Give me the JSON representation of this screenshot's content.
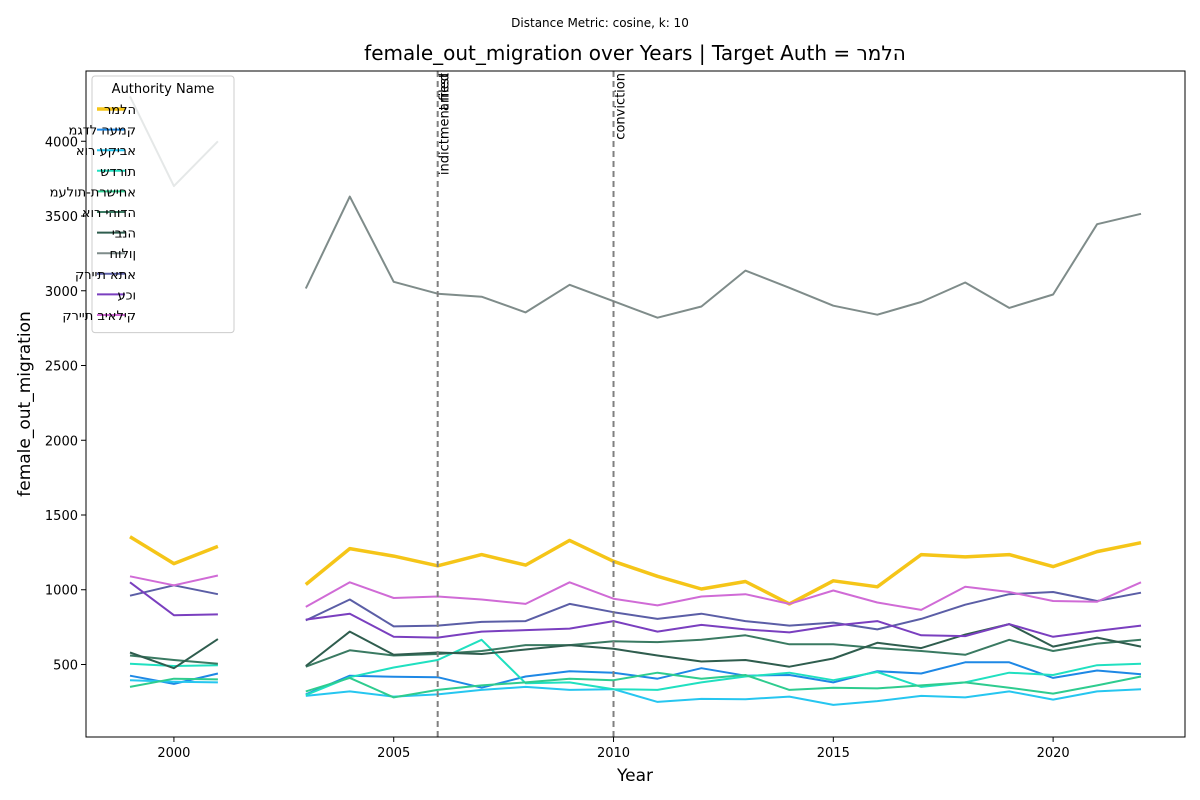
{
  "chart_data": {
    "type": "line",
    "suptitle": "Distance Metric: cosine, k: 10",
    "title": "female_out_migration over Years | Target Auth = הלמר",
    "xlabel": "Year",
    "ylabel": "female_out_migration",
    "xlim": [
      1998,
      2023
    ],
    "ylim": [
      15,
      4470
    ],
    "xticks": [
      2000,
      2005,
      2010,
      2015,
      2020
    ],
    "yticks": [
      500,
      1000,
      1500,
      2000,
      2500,
      3000,
      3500,
      4000
    ],
    "legend_title": "Authority Name",
    "legend_position": "upper-left",
    "grid": false,
    "years": [
      1999,
      2000,
      2001,
      2002,
      2003,
      2004,
      2005,
      2006,
      2007,
      2008,
      2009,
      2010,
      2011,
      2012,
      2013,
      2014,
      2015,
      2016,
      2017,
      2018,
      2019,
      2020,
      2021,
      2022
    ],
    "annotations": [
      {
        "x": 2006,
        "labels": [
          "indictment filed",
          "arrest"
        ]
      },
      {
        "x": 2010,
        "labels": [
          "conviction"
        ]
      }
    ],
    "series": [
      {
        "name": "הלמר",
        "color": "#f5c518",
        "width": 3.5,
        "values": [
          1355,
          1175,
          1290,
          null,
          1035,
          1275,
          1225,
          1160,
          1235,
          1165,
          1330,
          1190,
          1090,
          1005,
          1055,
          905,
          1060,
          1020,
          1235,
          1220,
          1235,
          1155,
          1255,
          1315
        ]
      },
      {
        "name": "קמעה לדגמ",
        "color": "#1e88e5",
        "width": 2,
        "values": [
          425,
          370,
          440,
          null,
          300,
          425,
          418,
          415,
          345,
          420,
          455,
          445,
          405,
          475,
          425,
          430,
          380,
          455,
          440,
          515,
          515,
          410,
          460,
          435
        ]
      },
      {
        "name": "אביקע רוא",
        "color": "#26c6f0",
        "width": 2,
        "values": [
          395,
          385,
          380,
          null,
          290,
          320,
          285,
          300,
          330,
          350,
          330,
          335,
          250,
          270,
          268,
          285,
          230,
          255,
          290,
          280,
          320,
          265,
          320,
          335
        ]
      },
      {
        "name": "תורדש",
        "color": "#20e0c0",
        "width": 2,
        "values": [
          505,
          490,
          495,
          null,
          295,
          415,
          480,
          530,
          665,
          375,
          380,
          335,
          330,
          380,
          420,
          445,
          395,
          450,
          350,
          380,
          445,
          430,
          495,
          505
        ]
      },
      {
        "name": "אחישרת-תולעמ",
        "color": "#2ecc8f",
        "width": 2,
        "values": [
          350,
          405,
          400,
          null,
          320,
          410,
          280,
          330,
          360,
          380,
          405,
          395,
          445,
          405,
          430,
          330,
          345,
          340,
          360,
          380,
          345,
          305,
          360,
          420
        ]
      },
      {
        "name": "הדוהי רוא",
        "color": "#3a7a62",
        "width": 2,
        "values": [
          560,
          530,
          505,
          null,
          485,
          595,
          560,
          570,
          590,
          630,
          630,
          655,
          650,
          665,
          695,
          635,
          635,
          610,
          590,
          565,
          665,
          590,
          640,
          665
        ]
      },
      {
        "name": "הנבי",
        "color": "#2f5d4e",
        "width": 2,
        "values": [
          580,
          475,
          670,
          null,
          490,
          720,
          565,
          580,
          570,
          600,
          630,
          605,
          560,
          520,
          530,
          485,
          540,
          645,
          610,
          700,
          770,
          620,
          680,
          620
        ]
      },
      {
        "name": "ןולוח",
        "color": "#7f8c8a",
        "width": 2,
        "values": [
          4300,
          3700,
          4000,
          null,
          3015,
          3630,
          3060,
          2980,
          2960,
          2855,
          3040,
          2930,
          2820,
          2895,
          3135,
          3020,
          2900,
          2840,
          2925,
          3055,
          2885,
          2975,
          3445,
          3515
        ]
      },
      {
        "name": "אתא תיירק",
        "color": "#5b5ea6",
        "width": 2,
        "values": [
          960,
          1030,
          970,
          null,
          795,
          935,
          755,
          760,
          785,
          790,
          905,
          850,
          805,
          840,
          790,
          760,
          780,
          735,
          805,
          900,
          970,
          985,
          925,
          980
        ]
      },
      {
        "name": "וכע",
        "color": "#7a3fbf",
        "width": 2,
        "values": [
          1050,
          830,
          835,
          null,
          800,
          840,
          685,
          680,
          720,
          730,
          740,
          790,
          720,
          765,
          735,
          715,
          760,
          790,
          695,
          690,
          770,
          685,
          725,
          760
        ]
      },
      {
        "name": "קילאיב תיירק",
        "color": "#d06bd6",
        "width": 2,
        "values": [
          1090,
          1030,
          1095,
          null,
          885,
          1050,
          945,
          955,
          935,
          905,
          1050,
          940,
          895,
          955,
          970,
          905,
          995,
          915,
          865,
          1020,
          985,
          925,
          920,
          1050
        ]
      }
    ]
  }
}
